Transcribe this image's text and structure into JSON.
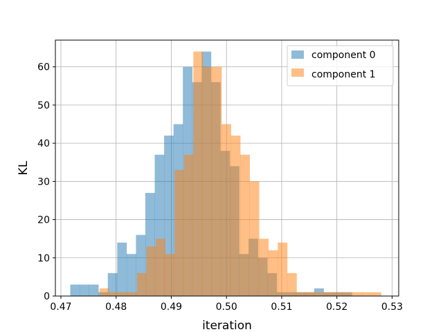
{
  "chart_data": {
    "type": "bar",
    "subtype": "overlapping-histogram",
    "title": "",
    "xlabel": "iteration",
    "ylabel": "KL",
    "xlim": [
      0.469,
      0.5312
    ],
    "ylim": [
      0,
      67
    ],
    "xticks": [
      0.47,
      0.48,
      0.49,
      0.5,
      0.51,
      0.52,
      0.53
    ],
    "xtick_labels": [
      "0.47",
      "0.48",
      "0.49",
      "0.50",
      "0.51",
      "0.52",
      "0.53"
    ],
    "yticks": [
      0,
      10,
      20,
      30,
      40,
      50,
      60
    ],
    "ytick_labels": [
      "0",
      "10",
      "20",
      "30",
      "40",
      "50",
      "60"
    ],
    "grid": true,
    "legend": {
      "position": "top-right"
    },
    "series": [
      {
        "name": "component 0",
        "color": "#1f77b4",
        "alpha": 0.5,
        "bin_start": 0.4717,
        "bin_end": 0.5227,
        "counts": [
          3,
          3,
          3,
          1,
          6,
          14,
          11,
          16,
          27,
          37,
          42,
          45,
          60,
          56,
          64,
          56,
          38,
          34,
          11,
          15,
          10,
          6,
          1,
          1,
          1,
          1,
          2,
          1,
          1,
          1
        ]
      },
      {
        "name": "component 1",
        "color": "#ff7f0e",
        "alpha": 0.5,
        "bin_start": 0.477,
        "bin_end": 0.528,
        "counts": [
          2,
          1,
          1,
          1,
          6,
          13,
          15,
          11,
          33,
          37,
          64,
          60,
          60,
          45,
          42,
          37,
          30,
          15,
          12,
          14,
          6,
          1,
          1,
          1,
          1,
          1,
          1,
          1,
          1,
          1
        ]
      }
    ]
  }
}
